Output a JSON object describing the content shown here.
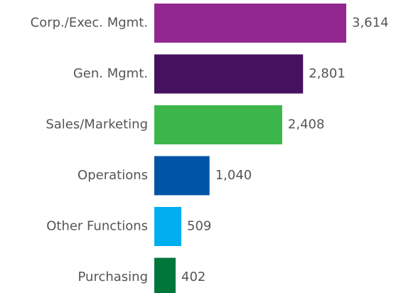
{
  "chart_data": {
    "type": "bar",
    "orientation": "horizontal",
    "categories": [
      "Corp./Exec. Mgmt.",
      "Gen. Mgmt.",
      "Sales/Marketing",
      "Operations",
      "Other Functions",
      "Purchasing"
    ],
    "values": [
      3614,
      2801,
      2408,
      1040,
      509,
      402
    ],
    "value_labels": [
      "3,614",
      "2,801",
      "2,408",
      "1,040",
      "509",
      "402"
    ],
    "colors": [
      "#92278f",
      "#45125f",
      "#3cb64a",
      "#0054a6",
      "#00aeef",
      "#00773a"
    ]
  }
}
